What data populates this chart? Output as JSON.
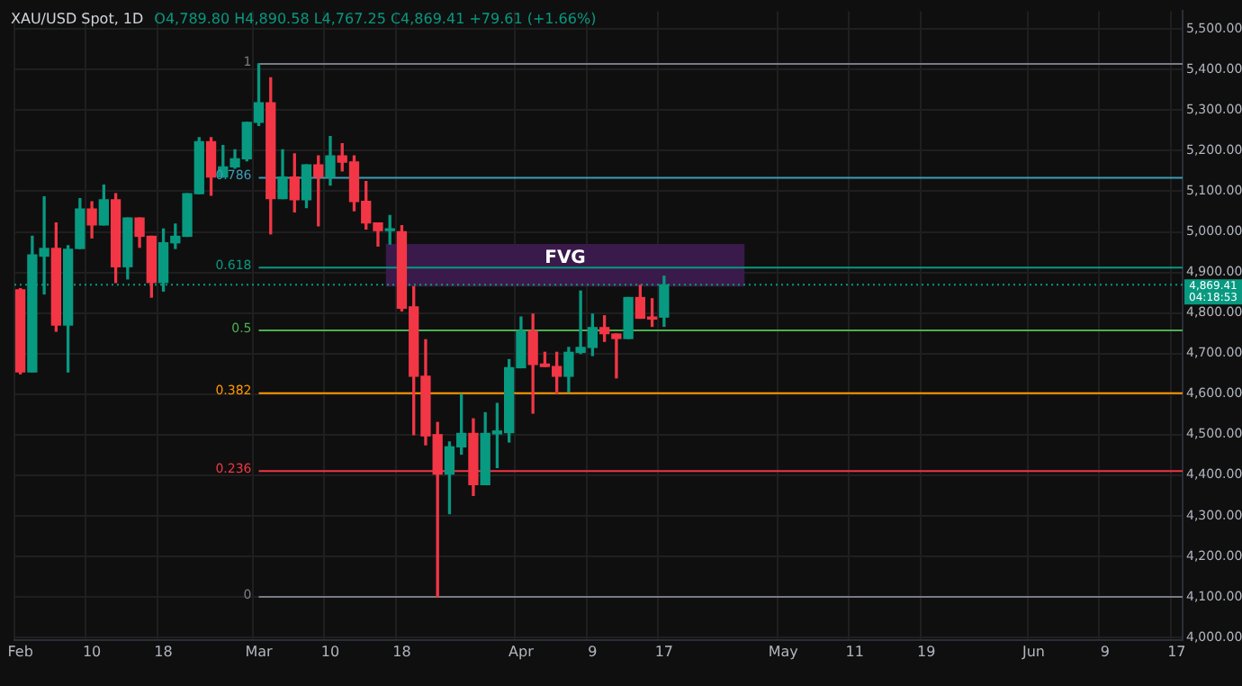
{
  "chart_data": {
    "type": "candlestick",
    "title": "XAU/USD Spot, 1D",
    "annotations": [
      "O4,789.80 H4,890.58 L4,767.25 C4,869.41 +79.61 (+1.66%)",
      "04:18:53",
      {
        "text": "1",
        "x": "Mar",
        "y": 5414
      },
      {
        "text": "0.786",
        "x": "Mar",
        "y": 5133
      },
      {
        "text": "0.618",
        "x": "Mar",
        "y": 4912
      },
      {
        "text": "0.5",
        "x": "Mar",
        "y": 4757
      },
      {
        "text": "0.382",
        "x": "Mar",
        "y": 4602
      },
      {
        "text": "0.236",
        "x": "Mar",
        "y": 4410
      },
      {
        "text": "0",
        "x": "Mar",
        "y": 4100
      }
    ],
    "categories": [
      "Feb",
      null,
      null,
      null,
      null,
      null,
      "10",
      null,
      null,
      null,
      null,
      null,
      "18",
      null,
      null,
      null,
      null,
      null,
      null,
      null,
      "Mar",
      null,
      null,
      null,
      null,
      null,
      "10",
      null,
      null,
      null,
      null,
      null,
      "18",
      null,
      null,
      null,
      null,
      null,
      null,
      null,
      null,
      null,
      "Apr",
      null,
      null,
      null,
      null,
      null,
      "9",
      null,
      null,
      null,
      null,
      null,
      "17",
      null,
      null,
      null,
      null,
      null,
      null,
      null,
      null,
      null,
      "May",
      null,
      null,
      null,
      null,
      null,
      "11",
      null,
      null,
      null,
      null,
      null,
      "19",
      null,
      null,
      null,
      null,
      null,
      null,
      null,
      null,
      "Jun",
      null,
      null,
      null,
      null,
      null,
      "9",
      null,
      null,
      null,
      null,
      null,
      "17"
    ],
    "ohlc": [
      [
        4857,
        4860,
        4650,
        4655
      ],
      [
        4655,
        4989,
        4655,
        4943
      ],
      [
        4940,
        5086,
        4847,
        4959
      ],
      [
        4959,
        5022,
        4755,
        4770
      ],
      [
        4770,
        4966,
        4655,
        4957
      ],
      [
        4959,
        5082,
        4959,
        5056
      ],
      [
        5056,
        5074,
        4985,
        5017
      ],
      [
        5017,
        5115,
        5017,
        5079
      ],
      [
        5079,
        5094,
        4875,
        4914
      ],
      [
        4914,
        5034,
        4884,
        5034
      ],
      [
        5034,
        5034,
        4962,
        4989
      ],
      [
        4989,
        4989,
        4839,
        4875
      ],
      [
        4875,
        5007,
        4854,
        4973
      ],
      [
        4973,
        5019,
        4959,
        4989
      ],
      [
        4989,
        5094,
        4989,
        5094
      ],
      [
        5094,
        5232,
        5094,
        5222
      ],
      [
        5222,
        5232,
        5090,
        5135
      ],
      [
        5135,
        5213,
        5135,
        5160
      ],
      [
        5160,
        5202,
        5157,
        5180
      ],
      [
        5180,
        5270,
        5175,
        5270
      ],
      [
        5270,
        5414,
        5262,
        5318
      ],
      [
        5318,
        5380,
        4995,
        5082
      ],
      [
        5082,
        5202,
        5082,
        5135
      ],
      [
        5135,
        5192,
        5049,
        5079
      ],
      [
        5079,
        5165,
        5060,
        5165
      ],
      [
        5165,
        5187,
        5015,
        5135
      ],
      [
        5135,
        5235,
        5115,
        5187
      ],
      [
        5187,
        5217,
        5150,
        5172
      ],
      [
        5172,
        5187,
        5052,
        5075
      ],
      [
        5075,
        5124,
        5007,
        5022
      ],
      [
        5022,
        5022,
        4965,
        5003
      ],
      [
        5003,
        5040,
        4970,
        5006
      ],
      [
        5000,
        5015,
        4805,
        4812
      ],
      [
        4815,
        4865,
        4500,
        4644
      ],
      [
        4644,
        4734,
        4475,
        4497
      ],
      [
        4500,
        4530,
        4100,
        4403
      ],
      [
        4403,
        4482,
        4305,
        4470
      ],
      [
        4470,
        4599,
        4452,
        4503
      ],
      [
        4503,
        4539,
        4350,
        4377
      ],
      [
        4377,
        4554,
        4377,
        4503
      ],
      [
        4502,
        4577,
        4419,
        4509
      ],
      [
        4505,
        4685,
        4482,
        4665
      ],
      [
        4665,
        4790,
        4665,
        4755
      ],
      [
        4755,
        4797,
        4553,
        4673
      ],
      [
        4674,
        4703,
        4668,
        4668
      ],
      [
        4668,
        4703,
        4602,
        4644
      ],
      [
        4644,
        4715,
        4605,
        4703
      ],
      [
        4703,
        4854,
        4700,
        4715
      ],
      [
        4715,
        4797,
        4695,
        4764
      ],
      [
        4764,
        4793,
        4730,
        4749
      ],
      [
        4748,
        4748,
        4640,
        4737
      ],
      [
        4737,
        4838,
        4737,
        4838
      ],
      [
        4838,
        4868,
        4787,
        4787
      ],
      [
        4790,
        4835,
        4767,
        4785
      ],
      [
        4789.8,
        4890.58,
        4767.25,
        4869.41
      ],
      null,
      null,
      null,
      null,
      null,
      null,
      null,
      null,
      null,
      null,
      null,
      null,
      null,
      null,
      null,
      null,
      null,
      null,
      null,
      null,
      null,
      null,
      null,
      null,
      null,
      null,
      null,
      null,
      null,
      null,
      null,
      null,
      null,
      null,
      null,
      null,
      null,
      null,
      null,
      null,
      null,
      null,
      null
    ],
    "colors": [
      "#f23645",
      "#089981",
      "#089981",
      "#f23645",
      "#089981",
      "#089981",
      "#f23645",
      "#089981",
      "#f23645",
      "#089981",
      "#f23645",
      "#f23645",
      "#089981",
      "#089981",
      "#089981",
      "#089981",
      "#f23645",
      "#089981",
      "#089981",
      "#089981",
      "#089981",
      "#f23645",
      "#089981",
      "#f23645",
      "#089981",
      "#f23645",
      "#089981",
      "#f23645",
      "#f23645",
      "#f23645",
      "#f23645",
      "#089981",
      "#f23645",
      "#f23645",
      "#f23645",
      "#f23645",
      "#089981",
      "#089981",
      "#f23645",
      "#089981",
      "#089981",
      "#089981",
      "#089981",
      "#f23645",
      "#f23645",
      "#f23645",
      "#089981",
      "#089981",
      "#089981",
      "#f23645",
      "#f23645",
      "#089981",
      "#f23645",
      "#f23645",
      "#089981",
      null,
      null,
      null,
      null,
      null,
      null,
      null,
      null,
      null,
      null,
      null,
      null,
      null,
      null,
      null,
      null,
      null,
      null,
      null,
      null,
      null,
      null,
      null,
      null,
      null,
      null,
      null,
      null,
      null,
      null,
      null,
      null,
      null,
      null,
      null,
      null,
      null,
      null,
      null,
      null,
      null,
      null,
      null
    ],
    "ylim": [
      3994,
      5544
    ],
    "yticks": [
      {
        "value": 4000,
        "label": "4,000.00"
      },
      {
        "value": 4100,
        "label": "4,100.00"
      },
      {
        "value": 4200,
        "label": "4,200.00"
      },
      {
        "value": 4300,
        "label": "4,300.00"
      },
      {
        "value": 4400,
        "label": "4,400.00"
      },
      {
        "value": 4500,
        "label": "4,500.00"
      },
      {
        "value": 4600,
        "label": "4,600.00"
      },
      {
        "value": 4700,
        "label": "4,700.00"
      },
      {
        "value": 4800,
        "label": "4,800.00"
      },
      {
        "value": 4900,
        "label": "4,900.00"
      },
      {
        "value": 5000,
        "label": "5,000.00"
      },
      {
        "value": 5100,
        "label": "5,100.00"
      },
      {
        "value": 5200,
        "label": "5,200.00"
      },
      {
        "value": 5300,
        "label": "5,300.00"
      },
      {
        "value": 5400,
        "label": "5,400.00"
      },
      {
        "value": 5500,
        "label": "5,500.00"
      }
    ],
    "grid": true,
    "ref_lines": [
      {
        "axis": "y",
        "value": 5414,
        "color": "#787b86"
      },
      {
        "axis": "y",
        "value": 5133,
        "color": "#3d9db5"
      },
      {
        "axis": "y",
        "value": 4912,
        "color": "#089981"
      },
      {
        "axis": "y",
        "value": 4757,
        "color": "#4caf50"
      },
      {
        "axis": "y",
        "value": 4602,
        "color": "#ff9800"
      },
      {
        "axis": "y",
        "value": 4410,
        "color": "#f23645"
      },
      {
        "axis": "y",
        "value": 4100,
        "color": "#787b86"
      },
      {
        "axis": "y",
        "value": 4869.41,
        "label": "4,869.41",
        "color": "#089981",
        "line_style": "dotted"
      }
    ],
    "bands": [
      {
        "axis": "y",
        "from": 4865,
        "to": 4970,
        "label": "FVG",
        "color": "#3a1a4a"
      }
    ]
  }
}
